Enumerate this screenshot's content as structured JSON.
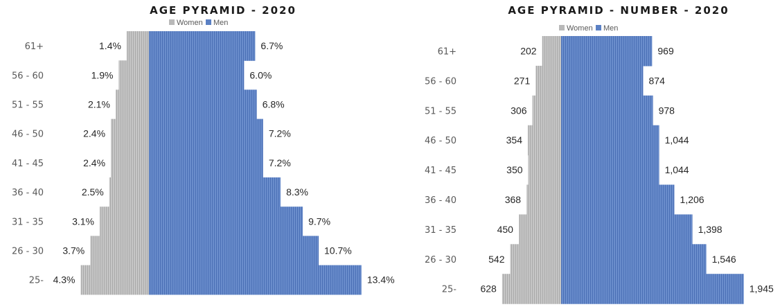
{
  "colors": {
    "women": "#b9b9b9",
    "men": "#5b80c4"
  },
  "chart_data": [
    {
      "type": "bar",
      "orientation": "horizontal-pyramid",
      "title": "AGE PYRAMID - 2020",
      "categories": [
        "61+",
        "56 - 60",
        "51 - 55",
        "46 - 50",
        "41 - 45",
        "36 - 40",
        "31 - 35",
        "26 - 30",
        "25-"
      ],
      "series": [
        {
          "name": "Women",
          "values": [
            1.4,
            1.9,
            2.1,
            2.4,
            2.4,
            2.5,
            3.1,
            3.7,
            4.3
          ],
          "labels": [
            "1.4%",
            "1.9%",
            "2.1%",
            "2.4%",
            "2.4%",
            "2.5%",
            "3.1%",
            "3.7%",
            "4.3%"
          ]
        },
        {
          "name": "Men",
          "values": [
            6.7,
            6.0,
            6.8,
            7.2,
            7.2,
            8.3,
            9.7,
            10.7,
            13.4
          ],
          "labels": [
            "6.7%",
            "6.0%",
            "6.8%",
            "7.2%",
            "7.2%",
            "8.3%",
            "9.7%",
            "10.7%",
            "13.4%"
          ]
        }
      ],
      "legend": [
        "Women",
        "Men"
      ],
      "legend_position": "top"
    },
    {
      "type": "bar",
      "orientation": "horizontal-pyramid",
      "title": "AGE PYRAMID - NUMBER - 2020",
      "categories": [
        "61+",
        "56 - 60",
        "51 - 55",
        "46 - 50",
        "41 - 45",
        "36 - 40",
        "31 - 35",
        "26 - 30",
        "25-"
      ],
      "series": [
        {
          "name": "Women",
          "values": [
            202,
            271,
            306,
            354,
            350,
            368,
            450,
            542,
            628
          ],
          "labels": [
            "202",
            "271",
            "306",
            "354",
            "350",
            "368",
            "450",
            "542",
            "628"
          ]
        },
        {
          "name": "Men",
          "values": [
            969,
            874,
            978,
            1044,
            1044,
            1206,
            1398,
            1546,
            1945
          ],
          "labels": [
            "969",
            "874",
            "978",
            "1,044",
            "1,044",
            "1,206",
            "1,398",
            "1,546",
            "1,945"
          ]
        }
      ],
      "legend": [
        "Women",
        "Men"
      ],
      "legend_position": "top"
    }
  ]
}
